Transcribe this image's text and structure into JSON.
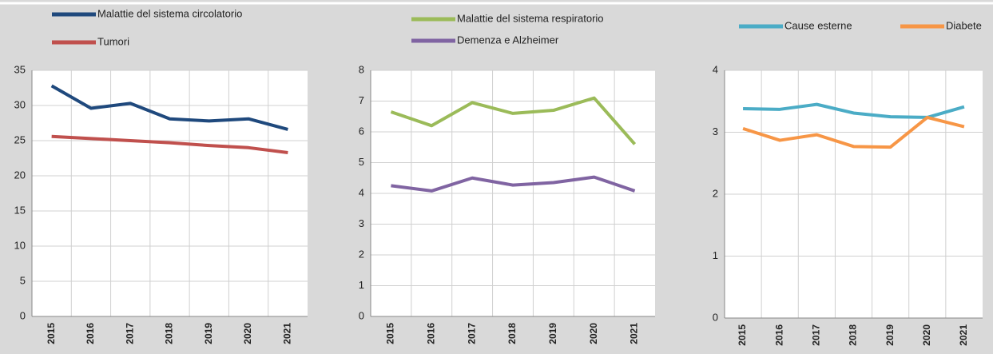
{
  "chart_data": [
    {
      "type": "line",
      "categories": [
        "2015",
        "2016",
        "2017",
        "2018",
        "2019",
        "2020",
        "2021"
      ],
      "series": [
        {
          "name": "Malattie del sistema circolatorio",
          "color": "#1f497d",
          "values": [
            32.8,
            29.6,
            30.3,
            28.1,
            27.8,
            28.1,
            26.6
          ]
        },
        {
          "name": "Tumori",
          "color": "#c0504d",
          "values": [
            25.6,
            25.3,
            25.0,
            24.7,
            24.3,
            24.0,
            23.3
          ]
        }
      ],
      "ylim": [
        0,
        35
      ],
      "yticks": [
        0,
        5,
        10,
        15,
        20,
        25,
        30,
        35
      ],
      "grid": true
    },
    {
      "type": "line",
      "categories": [
        "2015",
        "2016",
        "2017",
        "2018",
        "2019",
        "2020",
        "2021"
      ],
      "series": [
        {
          "name": "Malattie del sistema respiratorio",
          "color": "#9bbb59",
          "values": [
            6.65,
            6.2,
            6.95,
            6.6,
            6.7,
            7.1,
            5.6
          ]
        },
        {
          "name": "Demenza e Alzheimer",
          "color": "#8064a2",
          "values": [
            4.25,
            4.08,
            4.5,
            4.27,
            4.35,
            4.53,
            4.08
          ]
        }
      ],
      "ylim": [
        0,
        8
      ],
      "yticks": [
        0,
        1,
        2,
        3,
        4,
        5,
        6,
        7,
        8
      ],
      "grid": true
    },
    {
      "type": "line",
      "categories": [
        "2015",
        "2016",
        "2017",
        "2018",
        "2019",
        "2020",
        "2021"
      ],
      "series": [
        {
          "name": "Cause esterne",
          "color": "#4bacc6",
          "values": [
            3.38,
            3.37,
            3.45,
            3.31,
            3.25,
            3.24,
            3.41
          ]
        },
        {
          "name": "Diabete",
          "color": "#f79646",
          "values": [
            3.06,
            2.87,
            2.96,
            2.77,
            2.76,
            3.24,
            3.09
          ]
        }
      ],
      "ylim": [
        0,
        4
      ],
      "yticks": [
        0,
        1,
        2,
        3,
        4
      ],
      "grid": true
    }
  ]
}
